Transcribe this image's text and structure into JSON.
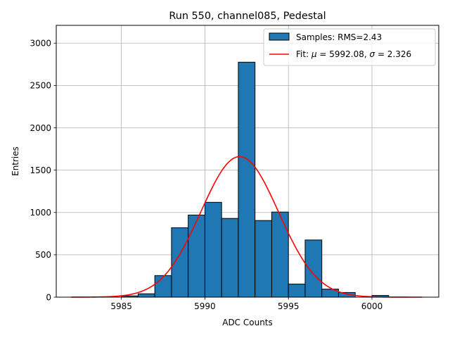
{
  "chart_data": {
    "type": "bar",
    "title": "Run 550, channel085, Pedestal",
    "xlabel": "ADC Counts",
    "ylabel": "Entries",
    "xlim": [
      5981.1,
      6004.0
    ],
    "ylim": [
      0,
      3210
    ],
    "grid": true,
    "legend_position": "top-right",
    "x_ticks": [
      5985,
      5990,
      5995,
      6000
    ],
    "y_ticks": [
      0,
      500,
      1000,
      1500,
      2000,
      2500,
      3000
    ],
    "bin_width": 1,
    "bins": [
      {
        "left": 5985,
        "value": 15
      },
      {
        "left": 5986,
        "value": 40
      },
      {
        "left": 5987,
        "value": 255
      },
      {
        "left": 5988,
        "value": 820
      },
      {
        "left": 5989,
        "value": 970
      },
      {
        "left": 5990,
        "value": 1120
      },
      {
        "left": 5991,
        "value": 930
      },
      {
        "left": 5992,
        "value": 2775
      },
      {
        "left": 5993,
        "value": 905
      },
      {
        "left": 5994,
        "value": 1005
      },
      {
        "left": 5995,
        "value": 155
      },
      {
        "left": 5996,
        "value": 675
      },
      {
        "left": 5997,
        "value": 95
      },
      {
        "left": 5998,
        "value": 55
      },
      {
        "left": 6000,
        "value": 20
      }
    ],
    "fit": {
      "mu": 5992.08,
      "sigma": 2.326,
      "amplitude": 1660,
      "x_range": [
        5982,
        6003
      ]
    },
    "series": [
      {
        "name": "Samples: RMS=2.43",
        "kind": "histogram",
        "color": "#1f77b4"
      },
      {
        "name_prefix": "Fit: ",
        "mu_symbol": "μ",
        "mu_text": " = 5992.08, ",
        "sigma_symbol": "σ",
        "sigma_text": " = 2.326",
        "kind": "line",
        "color": "#ff0000"
      }
    ]
  }
}
